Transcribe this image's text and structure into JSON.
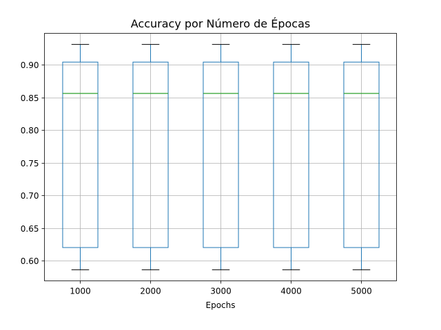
{
  "chart_data": {
    "type": "boxplot",
    "title": "Accuracy por Número de Épocas",
    "xlabel": "Epochs",
    "ylabel": "",
    "categories": [
      "1000",
      "2000",
      "3000",
      "4000",
      "5000"
    ],
    "boxes": [
      {
        "category": "1000",
        "whisker_low": 0.586,
        "q1": 0.62,
        "median": 0.856,
        "q3": 0.904,
        "whisker_high": 0.931
      },
      {
        "category": "2000",
        "whisker_low": 0.586,
        "q1": 0.62,
        "median": 0.856,
        "q3": 0.904,
        "whisker_high": 0.931
      },
      {
        "category": "3000",
        "whisker_low": 0.586,
        "q1": 0.62,
        "median": 0.856,
        "q3": 0.904,
        "whisker_high": 0.931
      },
      {
        "category": "4000",
        "whisker_low": 0.586,
        "q1": 0.62,
        "median": 0.856,
        "q3": 0.904,
        "whisker_high": 0.931
      },
      {
        "category": "5000",
        "whisker_low": 0.586,
        "q1": 0.62,
        "median": 0.856,
        "q3": 0.904,
        "whisker_high": 0.931
      }
    ],
    "yticks": [
      "0.60",
      "0.65",
      "0.70",
      "0.75",
      "0.80",
      "0.85",
      "0.90"
    ],
    "ylim": [
      0.569,
      0.948
    ],
    "grid": true,
    "colors": {
      "box": "#1f77b4",
      "median": "#2ca02c",
      "cap": "#000000",
      "grid": "#b0b0b0"
    }
  }
}
